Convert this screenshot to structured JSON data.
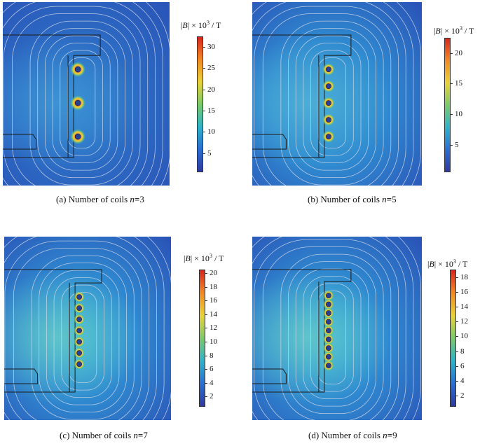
{
  "colorbar_title": {
    "symbol": "B",
    "mult": "× 10",
    "exp": "3",
    "unit": " / T"
  },
  "panels": [
    {
      "caption": {
        "label": "(a)",
        "text": "Number of coils",
        "var": "n",
        "eq": "=",
        "value": "3"
      },
      "coils": 3,
      "ticks": [
        "5",
        "10",
        "15",
        "20",
        "25",
        "30"
      ],
      "tick_values": [
        5,
        10,
        15,
        20,
        25,
        30
      ],
      "vmin": 0.5,
      "vmax": 32.5
    },
    {
      "caption": {
        "label": "(b)",
        "text": "Number of coils",
        "var": "n",
        "eq": "=",
        "value": "5"
      },
      "coils": 5,
      "ticks": [
        "5",
        "10",
        "15",
        "20"
      ],
      "tick_values": [
        5,
        10,
        15,
        20
      ],
      "vmin": 0.5,
      "vmax": 22.5
    },
    {
      "caption": {
        "label": "(c)",
        "text": "Number of coils",
        "var": "n",
        "eq": "=",
        "value": "7"
      },
      "coils": 7,
      "ticks": [
        "2",
        "4",
        "6",
        "8",
        "10",
        "12",
        "14",
        "16",
        "18",
        "20"
      ],
      "tick_values": [
        2,
        4,
        6,
        8,
        10,
        12,
        14,
        16,
        18,
        20
      ],
      "vmin": 0.5,
      "vmax": 20.5
    },
    {
      "caption": {
        "label": "(d)",
        "text": "Number of coils",
        "var": "n",
        "eq": "=",
        "value": "9"
      },
      "coils": 9,
      "ticks": [
        "2",
        "4",
        "6",
        "8",
        "10",
        "12",
        "14",
        "16",
        "18"
      ],
      "tick_values": [
        2,
        4,
        6,
        8,
        10,
        12,
        14,
        16,
        18
      ],
      "vmin": 0.5,
      "vmax": 19
    }
  ],
  "colors": {
    "background_field": "#2a55b8",
    "colormap": [
      "#2f3a9e",
      "#2b6fd1",
      "#2fb3c9",
      "#7cc96a",
      "#e8d23a",
      "#f08a26",
      "#d7261e"
    ],
    "coil": "#2a3f8f",
    "flux_line": "#cfd6e6",
    "geometry": "#1a1a1a"
  }
}
